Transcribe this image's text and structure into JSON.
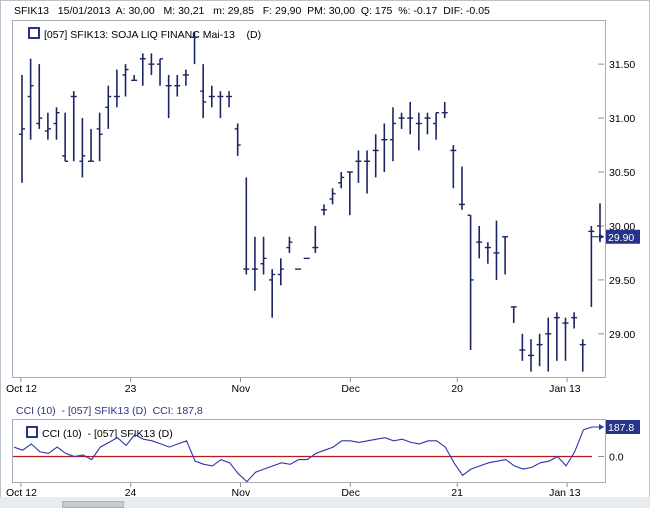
{
  "infobar": {
    "symbol": "SFIK13",
    "date": "15/01/2013",
    "open": "A: 30,00",
    "high": "M: 30,21",
    "low": "m: 29,85",
    "close": "F: 29,90",
    "avg": "PM: 30,00",
    "qty": "Q: 175",
    "pct": "%: -0.17",
    "dif": "DIF: -0.05"
  },
  "legend": {
    "text": "[057] SFIK13: SOJA LIQ FINANC Mai-13    (D)"
  },
  "cci_header": {
    "label": "CCI (10)",
    "series": "- [057] SFIK13 (D)",
    "value": "CCI: 187,8"
  },
  "cci_legend": {
    "label": "CCI (10)",
    "series": "- [057] SFIK13 (D)"
  },
  "colors": {
    "price_bar": "#1c2563",
    "cci_line": "#2c36a8",
    "zero_line": "#b51b1b",
    "marker_bg": "#27338a"
  },
  "chart_data": [
    {
      "type": "ohlc",
      "title": "[057] SFIK13: SOJA LIQ FINANC Mai-13 (D)",
      "ylim": [
        28.6,
        31.9
      ],
      "y_ticks": [
        "31.50",
        "31.00",
        "30.50",
        "30.00",
        "29.50",
        "29.00"
      ],
      "x_ticks": [
        "Oct 12",
        "23",
        "Nov",
        "Dec",
        "20",
        "Jan 13"
      ],
      "last_price_label": "29.90",
      "bars": [
        {
          "o": 30.85,
          "h": 31.4,
          "l": 30.4,
          "c": 30.9
        },
        {
          "o": 31.2,
          "h": 31.55,
          "l": 30.8,
          "c": 31.3
        },
        {
          "o": 30.95,
          "h": 31.5,
          "l": 30.9,
          "c": 31.0
        },
        {
          "o": 30.88,
          "h": 31.05,
          "l": 30.8,
          "c": 30.9
        },
        {
          "o": 30.95,
          "h": 31.1,
          "l": 30.8,
          "c": 31.05
        },
        {
          "o": 30.65,
          "h": 31.05,
          "l": 30.6,
          "c": 30.6
        },
        {
          "o": 31.2,
          "h": 31.25,
          "l": 30.6,
          "c": 31.2
        },
        {
          "o": 30.6,
          "h": 31.0,
          "l": 30.45,
          "c": 30.65
        },
        {
          "o": 30.6,
          "h": 30.9,
          "l": 30.6,
          "c": 30.6
        },
        {
          "o": 30.9,
          "h": 31.05,
          "l": 30.6,
          "c": 30.85
        },
        {
          "o": 31.1,
          "h": 31.3,
          "l": 30.9,
          "c": 31.2
        },
        {
          "o": 31.2,
          "h": 31.45,
          "l": 31.1,
          "c": 31.2
        },
        {
          "o": 31.4,
          "h": 31.5,
          "l": 31.2,
          "c": 31.45
        },
        {
          "o": 31.35,
          "h": 31.4,
          "l": 31.35,
          "c": 31.35
        },
        {
          "o": 31.55,
          "h": 31.6,
          "l": 31.3,
          "c": 31.55
        },
        {
          "o": 31.5,
          "h": 31.6,
          "l": 31.4,
          "c": 31.5
        },
        {
          "o": 31.5,
          "h": 31.55,
          "l": 31.3,
          "c": 31.55
        },
        {
          "o": 31.3,
          "h": 31.4,
          "l": 31.0,
          "c": 31.3
        },
        {
          "o": 31.3,
          "h": 31.4,
          "l": 31.2,
          "c": 31.3
        },
        {
          "o": 31.4,
          "h": 31.45,
          "l": 31.3,
          "c": 31.4
        },
        {
          "o": 31.75,
          "h": 31.8,
          "l": 31.5,
          "c": 31.75
        },
        {
          "o": 31.25,
          "h": 31.5,
          "l": 31.0,
          "c": 31.15
        },
        {
          "o": 31.2,
          "h": 31.3,
          "l": 31.1,
          "c": 31.2
        },
        {
          "o": 31.2,
          "h": 31.25,
          "l": 31.0,
          "c": 31.2
        },
        {
          "o": 31.2,
          "h": 31.25,
          "l": 31.1,
          "c": 31.2
        },
        {
          "o": 30.9,
          "h": 30.95,
          "l": 30.65,
          "c": 30.75
        },
        {
          "o": 29.6,
          "h": 30.45,
          "l": 29.55,
          "c": 29.6
        },
        {
          "o": 29.6,
          "h": 29.9,
          "l": 29.4,
          "c": 29.6
        },
        {
          "o": 29.65,
          "h": 29.9,
          "l": 29.55,
          "c": 29.7
        },
        {
          "o": 29.5,
          "h": 29.6,
          "l": 29.15,
          "c": 29.55
        },
        {
          "o": 29.55,
          "h": 29.7,
          "l": 29.45,
          "c": 29.6
        },
        {
          "o": 29.8,
          "h": 29.9,
          "l": 29.75,
          "c": 29.85
        },
        {
          "o": 29.6,
          "h": 29.6,
          "l": 29.6,
          "c": 29.6
        },
        {
          "o": 29.7,
          "h": 29.7,
          "l": 29.7,
          "c": 29.7
        },
        {
          "o": 29.8,
          "h": 30.0,
          "l": 29.75,
          "c": 29.8
        },
        {
          "o": 30.15,
          "h": 30.2,
          "l": 30.1,
          "c": 30.15
        },
        {
          "o": 30.25,
          "h": 30.35,
          "l": 30.2,
          "c": 30.3
        },
        {
          "o": 30.4,
          "h": 30.5,
          "l": 30.35,
          "c": 30.45
        },
        {
          "o": 30.5,
          "h": 30.5,
          "l": 30.1,
          "c": 30.5
        },
        {
          "o": 30.6,
          "h": 30.7,
          "l": 30.4,
          "c": 30.6
        },
        {
          "o": 30.6,
          "h": 30.7,
          "l": 30.3,
          "c": 30.6
        },
        {
          "o": 30.7,
          "h": 30.85,
          "l": 30.45,
          "c": 30.7
        },
        {
          "o": 30.8,
          "h": 30.95,
          "l": 30.5,
          "c": 30.8
        },
        {
          "o": 30.8,
          "h": 31.1,
          "l": 30.6,
          "c": 30.95
        },
        {
          "o": 31.0,
          "h": 31.05,
          "l": 30.9,
          "c": 31.0
        },
        {
          "o": 31.0,
          "h": 31.15,
          "l": 30.85,
          "c": 31.0
        },
        {
          "o": 30.95,
          "h": 31.05,
          "l": 30.7,
          "c": 30.95
        },
        {
          "o": 31.0,
          "h": 31.05,
          "l": 30.85,
          "c": 31.0
        },
        {
          "o": 30.95,
          "h": 31.05,
          "l": 30.8,
          "c": 31.05
        },
        {
          "o": 31.05,
          "h": 31.15,
          "l": 31.0,
          "c": 31.05
        },
        {
          "o": 30.7,
          "h": 30.75,
          "l": 30.35,
          "c": 30.7
        },
        {
          "o": 30.2,
          "h": 30.55,
          "l": 30.15,
          "c": 30.2
        },
        {
          "o": 30.1,
          "h": 30.1,
          "l": 28.85,
          "c": 29.5
        },
        {
          "o": 29.85,
          "h": 30.0,
          "l": 29.7,
          "c": 29.85
        },
        {
          "o": 29.8,
          "h": 29.85,
          "l": 29.65,
          "c": 29.8
        },
        {
          "o": 29.75,
          "h": 30.05,
          "l": 29.5,
          "c": 29.75
        },
        {
          "o": 29.9,
          "h": 29.9,
          "l": 29.55,
          "c": 29.9
        },
        {
          "o": 29.25,
          "h": 29.25,
          "l": 29.1,
          "c": 29.25
        },
        {
          "o": 28.85,
          "h": 29.0,
          "l": 28.75,
          "c": 28.85
        },
        {
          "o": 28.8,
          "h": 28.95,
          "l": 28.65,
          "c": 28.8
        },
        {
          "o": 28.9,
          "h": 29.0,
          "l": 28.7,
          "c": 28.9
        },
        {
          "o": 29.0,
          "h": 29.15,
          "l": 28.65,
          "c": 29.0
        },
        {
          "o": 29.15,
          "h": 29.2,
          "l": 28.75,
          "c": 29.15
        },
        {
          "o": 29.1,
          "h": 29.15,
          "l": 28.75,
          "c": 29.1
        },
        {
          "o": 29.15,
          "h": 29.2,
          "l": 29.05,
          "c": 29.15
        },
        {
          "o": 28.9,
          "h": 28.95,
          "l": 28.65,
          "c": 28.9
        },
        {
          "o": 29.95,
          "h": 30.0,
          "l": 29.25,
          "c": 29.95
        },
        {
          "o": 30.0,
          "h": 30.21,
          "l": 29.85,
          "c": 29.9
        }
      ]
    },
    {
      "type": "line",
      "title": "CCI (10)",
      "x_ticks": [
        "Oct 12",
        "24",
        "Nov",
        "Dec",
        "21",
        "Jan 13"
      ],
      "y_ticks": [
        "0.0"
      ],
      "last_value_label": "187.8",
      "ylim": [
        -150,
        220
      ],
      "series": [
        {
          "name": "CCI (10)",
          "values": [
            60,
            40,
            80,
            30,
            20,
            60,
            20,
            0,
            10,
            -20,
            60,
            90,
            120,
            70,
            140,
            110,
            100,
            80,
            60,
            80,
            100,
            -30,
            -50,
            -60,
            -20,
            -40,
            -110,
            -160,
            -100,
            -80,
            -60,
            -40,
            -50,
            -20,
            -20,
            20,
            40,
            60,
            100,
            100,
            90,
            100,
            110,
            120,
            100,
            110,
            90,
            80,
            100,
            100,
            60,
            -40,
            -120,
            -80,
            -60,
            -40,
            -30,
            -20,
            -60,
            -80,
            -70,
            -40,
            -30,
            0,
            -60,
            30,
            170,
            188
          ]
        }
      ]
    }
  ]
}
